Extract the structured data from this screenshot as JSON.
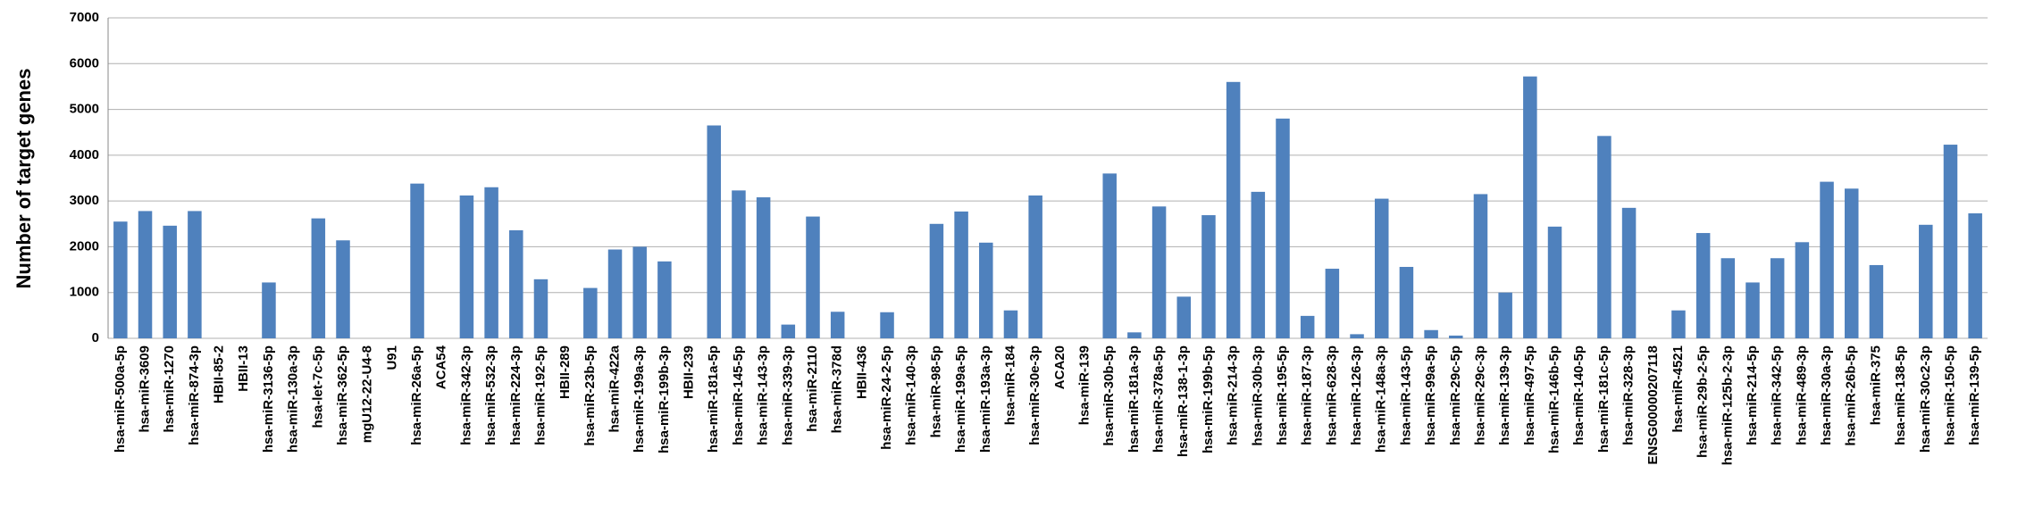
{
  "chart_data": {
    "type": "bar",
    "y_label": "Number of target genes",
    "color": "#4f81bd",
    "grid": true,
    "categories": [
      "hsa-miR-500a-5p",
      "hsa-miR-3609",
      "hsa-miR-1270",
      "hsa-miR-874-3p",
      "HBII-85-2",
      "HBII-13",
      "hsa-miR-3136-5p",
      "hsa-miR-130a-3p",
      "hsa-let-7c-5p",
      "hsa-miR-362-5p",
      "mgU12-22-U4-8",
      "U91",
      "hsa-miR-26a-5p",
      "ACA54",
      "hsa-miR-342-3p",
      "hsa-miR-532-3p",
      "hsa-miR-224-3p",
      "hsa-miR-192-5p",
      "HBII-289",
      "hsa-miR-23b-5p",
      "hsa-miR-422a",
      "hsa-miR-199a-3p",
      "hsa-miR-199b-3p",
      "HBII-239",
      "hsa-miR-181a-5p",
      "hsa-miR-145-5p",
      "hsa-miR-143-3p",
      "hsa-miR-339-3p",
      "hsa-miR-2110",
      "hsa-miR-378d",
      "HBII-436",
      "hsa-miR-24-2-5p",
      "hsa-miR-140-3p",
      "hsa-miR-98-5p",
      "hsa-miR-199a-5p",
      "hsa-miR-193a-3p",
      "hsa-miR-184",
      "hsa-miR-30e-3p",
      "ACA20",
      "hsa-miR-139",
      "hsa-miR-30b-5p",
      "hsa-miR-181a-3p",
      "hsa-miR-378a-5p",
      "hsa-miR-138-1-3p",
      "hsa-miR-199b-5p",
      "hsa-miR-214-3p",
      "hsa-miR-30b-3p",
      "hsa-miR-195-5p",
      "hsa-miR-187-3p",
      "hsa-miR-628-3p",
      "hsa-miR-126-3p",
      "hsa-miR-148a-3p",
      "hsa-miR-143-5p",
      "hsa-miR-99a-5p",
      "hsa-miR-29c-5p",
      "hsa-miR-29c-3p",
      "hsa-miR-139-3p",
      "hsa-miR-497-5p",
      "hsa-miR-146b-5p",
      "hsa-miR-140-5p",
      "hsa-miR-181c-5p",
      "hsa-miR-328-3p",
      "ENSG00000207118",
      "hsa-miR-4521",
      "hsa-miR-29b-2-5p",
      "hsa-miR-125b-2-3p",
      "hsa-miR-214-5p",
      "hsa-miR-342-5p",
      "hsa-miR-489-3p",
      "hsa-miR-30a-3p",
      "hsa-miR-26b-5p",
      "hsa-miR-375",
      "hsa-miR-138-5p",
      "hsa-miR-30c2-3p",
      "hsa-miR-150-5p",
      "hsa-miR-139-5p"
    ],
    "values": [
      2550,
      2780,
      2460,
      2780,
      0,
      0,
      1220,
      0,
      2620,
      2140,
      0,
      0,
      3380,
      0,
      3120,
      3300,
      2360,
      1290,
      0,
      1100,
      1940,
      2000,
      1680,
      0,
      4650,
      3230,
      3080,
      300,
      2660,
      580,
      0,
      570,
      0,
      2500,
      2770,
      2090,
      610,
      3120,
      0,
      0,
      3600,
      130,
      2880,
      910,
      2690,
      5600,
      3200,
      4800,
      490,
      1520,
      90,
      3050,
      1560,
      180,
      60,
      3150,
      1000,
      5720,
      2440,
      0,
      4420,
      2850,
      0,
      610,
      2300,
      1750,
      1220,
      1750,
      2100,
      3420,
      3270,
      1600,
      0,
      2480,
      4230,
      2730
    ],
    "ylim": [
      0,
      7000
    ],
    "yticks": [
      0,
      1000,
      2000,
      3000,
      4000,
      5000,
      6000,
      7000
    ]
  }
}
